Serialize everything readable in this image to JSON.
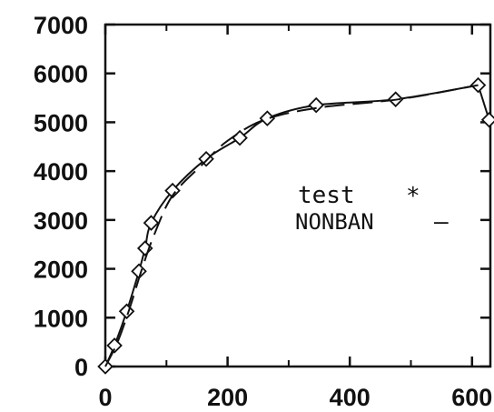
{
  "chart_data": {
    "type": "line",
    "xlim": [
      0,
      630
    ],
    "ylim": [
      0,
      7000
    ],
    "x_ticks": [
      0,
      200,
      400,
      600
    ],
    "y_ticks": [
      0,
      1000,
      2000,
      3000,
      4000,
      5000,
      6000,
      7000
    ],
    "x_tick_labels": [
      "0",
      "200",
      "400",
      "600"
    ],
    "y_tick_labels": [
      "0",
      "1000",
      "2000",
      "3000",
      "4000",
      "5000",
      "6000",
      "7000"
    ],
    "grid": false,
    "legend_position": "right-middle",
    "series": [
      {
        "name": "test",
        "legend_symbol": "*",
        "style": "solid",
        "marker": "diamond",
        "points": [
          {
            "x": 0,
            "y": 0
          },
          {
            "x": 15,
            "y": 430
          },
          {
            "x": 35,
            "y": 1130
          },
          {
            "x": 55,
            "y": 1950
          },
          {
            "x": 65,
            "y": 2420
          },
          {
            "x": 75,
            "y": 2940
          },
          {
            "x": 110,
            "y": 3600
          },
          {
            "x": 165,
            "y": 4250
          },
          {
            "x": 220,
            "y": 4680
          },
          {
            "x": 265,
            "y": 5080
          },
          {
            "x": 345,
            "y": 5350
          },
          {
            "x": 475,
            "y": 5470
          },
          {
            "x": 610,
            "y": 5760
          },
          {
            "x": 628,
            "y": 5050
          }
        ]
      },
      {
        "name": "NONBAN",
        "legend_symbol": "–",
        "style": "dashed",
        "marker": "none",
        "points": [
          {
            "x": 0,
            "y": 0
          },
          {
            "x": 20,
            "y": 500
          },
          {
            "x": 40,
            "y": 1200
          },
          {
            "x": 60,
            "y": 2000
          },
          {
            "x": 80,
            "y": 2700
          },
          {
            "x": 110,
            "y": 3500
          },
          {
            "x": 160,
            "y": 4150
          },
          {
            "x": 200,
            "y": 4620
          },
          {
            "x": 260,
            "y": 5050
          },
          {
            "x": 350,
            "y": 5300
          },
          {
            "x": 480,
            "y": 5470
          },
          {
            "x": 610,
            "y": 5760
          }
        ]
      }
    ]
  }
}
